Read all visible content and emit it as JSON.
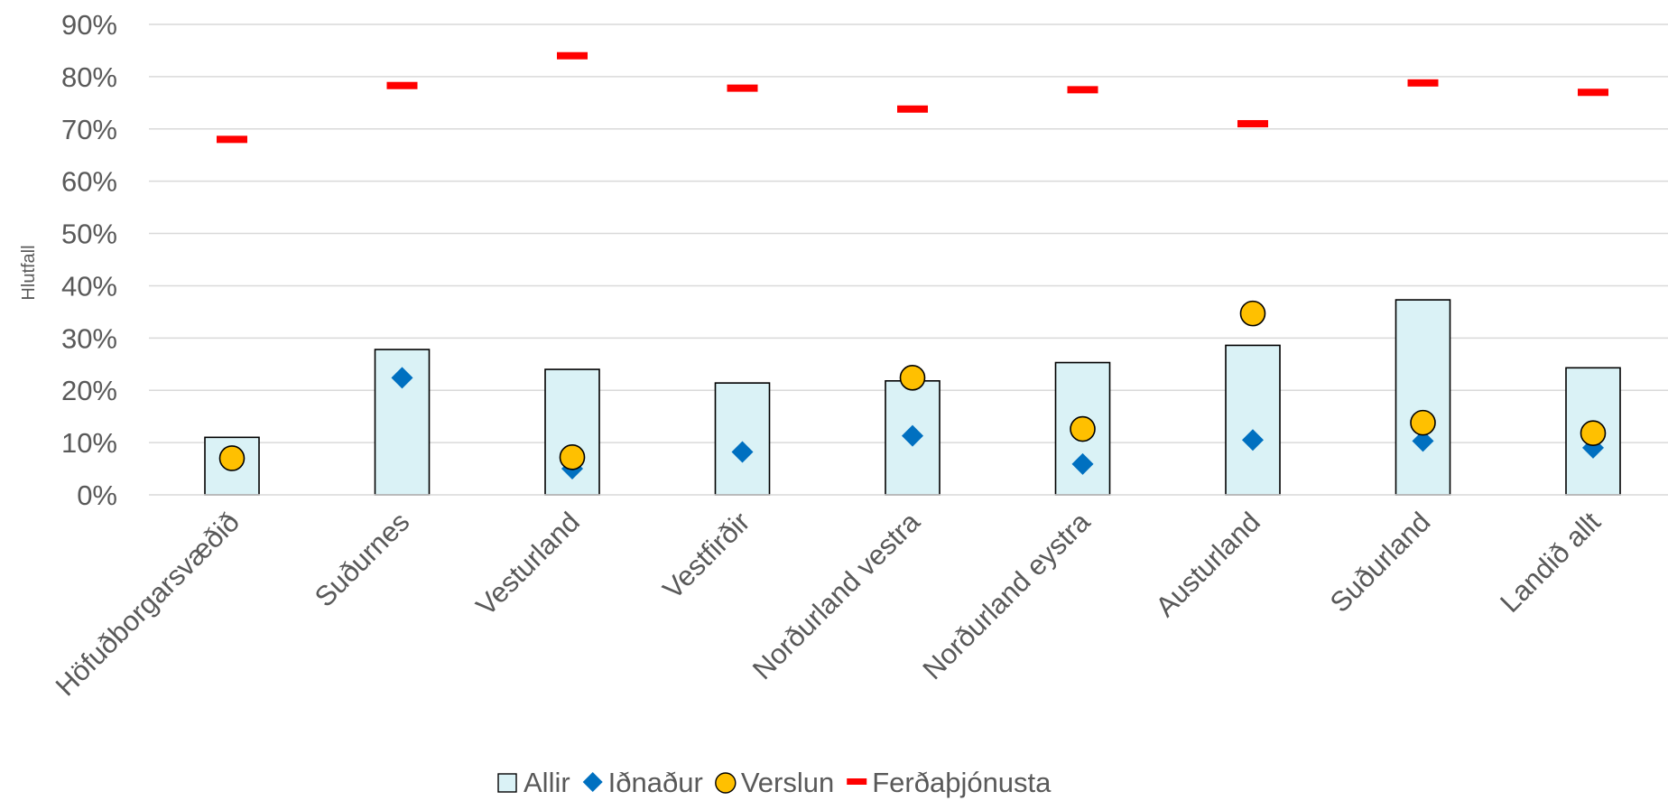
{
  "chart_data": {
    "type": "bar",
    "ylabel": "Hlutfall",
    "ylim": [
      0,
      90
    ],
    "y_tick_labels": [
      "0%",
      "10%",
      "20%",
      "30%",
      "40%",
      "50%",
      "60%",
      "70%",
      "80%",
      "90%"
    ],
    "y_tick_values": [
      0,
      10,
      20,
      30,
      40,
      50,
      60,
      70,
      80,
      90
    ],
    "grid": true,
    "legend_position": "bottom",
    "categories": [
      "Höfuðborgarsvæðið",
      "Suðurnes",
      "Vesturland",
      "Vestfirðir",
      "Norðurland vestra",
      "Norðurland eystra",
      "Austurland",
      "Suðurland",
      "Landið allt"
    ],
    "series": [
      {
        "name": "Allir",
        "mark": "bar",
        "color": "#DAF2F6",
        "values": [
          11,
          27.8,
          24,
          21.4,
          21.8,
          25.3,
          28.6,
          37.3,
          24.3
        ]
      },
      {
        "name": "Iðnaður",
        "mark": "diamond",
        "color": "#0070C0",
        "values": [
          null,
          22.4,
          5,
          8.2,
          11.3,
          5.9,
          10.5,
          10.3,
          9
        ]
      },
      {
        "name": "Verslun",
        "mark": "circle",
        "color": "#FFC000",
        "values": [
          7,
          null,
          7.2,
          null,
          22.4,
          12.6,
          34.7,
          13.8,
          11.8
        ]
      },
      {
        "name": "Ferðaþjónusta",
        "mark": "dash",
        "color": "#FF0000",
        "values": [
          68,
          78.3,
          84,
          77.8,
          73.8,
          77.5,
          71,
          78.8,
          77
        ]
      }
    ]
  }
}
